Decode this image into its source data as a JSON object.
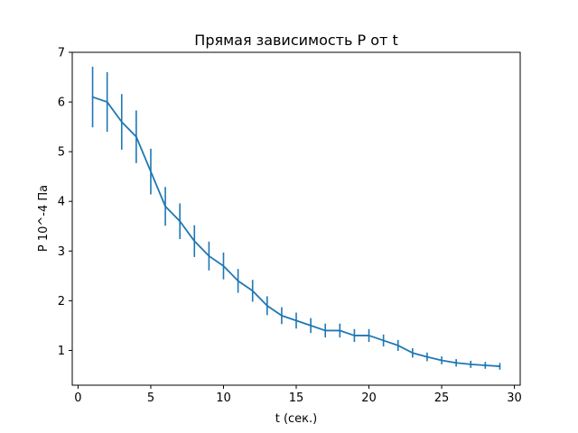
{
  "chart_data": {
    "type": "line",
    "title": "Прямая зависимость P от t",
    "xlabel": "t (сек.)",
    "ylabel": "P 10^-4 Па",
    "xlim": [
      -0.4,
      30.4
    ],
    "ylim": [
      0.3,
      7.0
    ],
    "xticks": [
      0,
      5,
      10,
      15,
      20,
      25,
      30
    ],
    "yticks": [
      1,
      2,
      3,
      4,
      5,
      6,
      7
    ],
    "grid": false,
    "legend": null,
    "color": "#1f77b4",
    "series": [
      {
        "x": [
          1,
          2,
          3,
          4,
          5,
          6,
          7,
          8,
          9,
          10,
          11,
          12,
          13,
          14,
          15,
          16,
          17,
          18,
          19,
          20,
          21,
          22,
          23,
          24,
          25,
          26,
          27,
          28,
          29
        ],
        "values": [
          6.1,
          6.0,
          5.6,
          5.3,
          4.6,
          3.9,
          3.6,
          3.2,
          2.9,
          2.7,
          2.4,
          2.2,
          1.9,
          1.7,
          1.6,
          1.5,
          1.4,
          1.4,
          1.3,
          1.3,
          1.2,
          1.1,
          0.95,
          0.87,
          0.8,
          0.75,
          0.72,
          0.7,
          0.68
        ],
        "errors": [
          0.61,
          0.6,
          0.56,
          0.53,
          0.46,
          0.39,
          0.36,
          0.32,
          0.29,
          0.27,
          0.24,
          0.22,
          0.19,
          0.17,
          0.16,
          0.15,
          0.14,
          0.14,
          0.13,
          0.13,
          0.12,
          0.11,
          0.095,
          0.087,
          0.08,
          0.075,
          0.072,
          0.07,
          0.068
        ]
      }
    ]
  }
}
